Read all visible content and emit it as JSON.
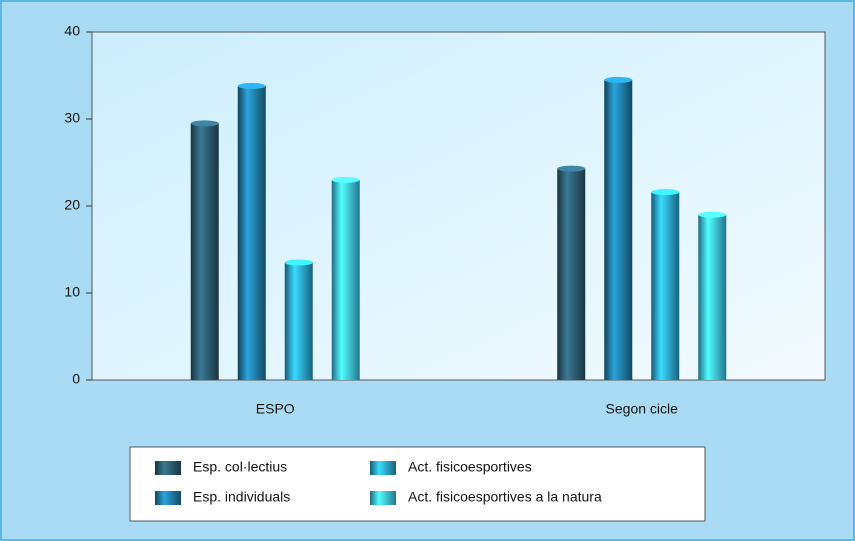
{
  "chart_data": {
    "type": "bar",
    "categories": [
      "ESPO",
      "Segon cicle"
    ],
    "series": [
      {
        "name": "Esp. col·lectius",
        "color": "#2b5a6e",
        "values": [
          29.5,
          24.3
        ]
      },
      {
        "name": "Esp. individuals",
        "color": "#1f7aa3",
        "values": [
          33.8,
          34.5
        ]
      },
      {
        "name": "Act. fisicoesportives",
        "color": "#2aa3d6",
        "values": [
          13.5,
          21.6
        ]
      },
      {
        "name": "Act. fisicoesportives a la natura",
        "color": "#3cc0ee",
        "values": [
          23,
          19
        ]
      }
    ],
    "ylim": [
      0,
      40
    ],
    "yticks": [
      0,
      10,
      20,
      30,
      40
    ]
  }
}
